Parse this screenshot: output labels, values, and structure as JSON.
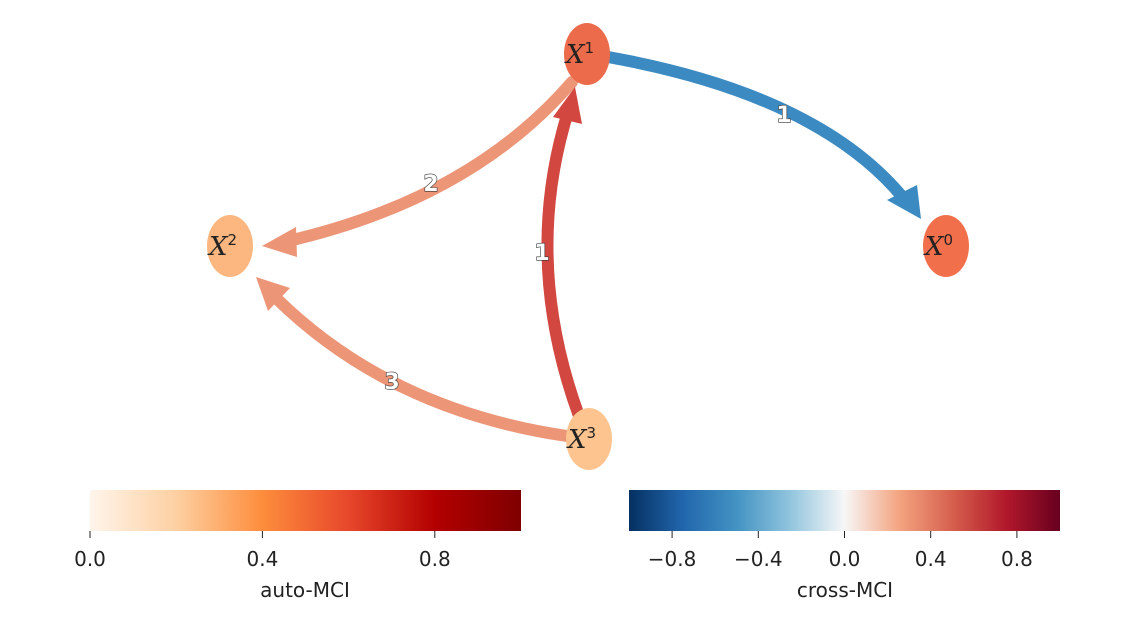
{
  "diagram": {
    "nodes": [
      {
        "id": "x1",
        "base": "X",
        "sup": "1",
        "color": "#eb6b4b"
      },
      {
        "id": "x2",
        "base": "X",
        "sup": "2",
        "color": "#fbb77f"
      },
      {
        "id": "x3",
        "base": "X",
        "sup": "3",
        "color": "#fdc48f"
      },
      {
        "id": "x0",
        "base": "X",
        "sup": "0",
        "color": "#f26f4b"
      }
    ],
    "edges": [
      {
        "from": "x1",
        "to": "x0",
        "label": "1",
        "color": "#3b8bc2"
      },
      {
        "from": "x1",
        "to": "x2",
        "label": "2",
        "color": "#ec9577"
      },
      {
        "from": "x3",
        "to": "x1",
        "label": "1",
        "color": "#d2473f"
      },
      {
        "from": "x3",
        "to": "x2",
        "label": "3",
        "color": "#ec9577"
      }
    ]
  },
  "colorbars": {
    "auto": {
      "title": "auto-MCI",
      "ticks": [
        "0.0",
        "0.4",
        "0.8"
      ],
      "range": [
        0,
        1
      ],
      "tick_values": [
        0.0,
        0.4,
        0.8
      ],
      "colors": [
        "#fff5eb",
        "#fdd0a2",
        "#fd8d3c",
        "#e7472b",
        "#b30000",
        "#7f0000"
      ]
    },
    "cross": {
      "title": "cross-MCI",
      "ticks": [
        "−0.8",
        "−0.4",
        "0.0",
        "0.4",
        "0.8"
      ],
      "range": [
        -1,
        1
      ],
      "tick_values": [
        -0.8,
        -0.4,
        0.0,
        0.4,
        0.8
      ],
      "colors": [
        "#053061",
        "#2166ac",
        "#4393c3",
        "#92c5de",
        "#f7f7f7",
        "#f4a582",
        "#d6604d",
        "#b2182b",
        "#67001f"
      ]
    }
  }
}
